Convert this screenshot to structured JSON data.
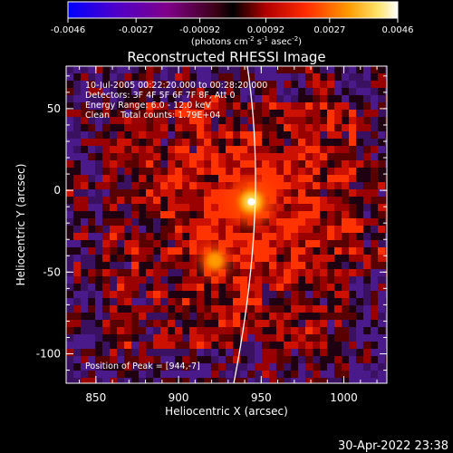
{
  "chart_data": {
    "type": "heatmap",
    "title": "Reconstructed RHESSI Image",
    "xlabel": "Heliocentric X (arcsec)",
    "ylabel": "Heliocentric Y (arcsec)",
    "xlim": [
      832,
      1026
    ],
    "ylim": [
      -118,
      76
    ],
    "xticks": [
      850,
      900,
      950,
      1000
    ],
    "yticks": [
      50,
      0,
      -50,
      -100
    ],
    "colorbar": {
      "ticks": [
        "-0.0046",
        "-0.0027",
        "-0.00092",
        "0.00092",
        "0.0027",
        "0.0046"
      ],
      "range": [
        -0.0046,
        0.0046
      ],
      "units_main": "(photons cm",
      "units_exp1": "-2",
      "units_s": " s",
      "units_exp2": "-1",
      "units_asec": " asec",
      "units_exp3": "-2",
      "units_close": ")",
      "colors": [
        "#0000ff",
        "#6a00b8",
        "#8b0060",
        "#000000",
        "#c00000",
        "#ff2a00",
        "#ff9000",
        "#ffe060",
        "#ffffff"
      ]
    },
    "sources": [
      {
        "x": 944,
        "y": -7,
        "peak": 0.0046
      },
      {
        "x": 922,
        "y": -43,
        "peak": 0.0032
      }
    ],
    "limb": "solar limb arc",
    "annotations": {
      "line1": "10-Jul-2005 00:22:20.000 to 00:28:20.000",
      "line2": "Detectors: 3F 4F 5F 6F 7F 8F, Att 0",
      "line3": "Energy Range: 6.0 - 12.0 keV",
      "line4": "Clean    Total counts: 1.79E+04",
      "peak": "Position of Peak = [944,-7]"
    }
  },
  "footer": {
    "timestamp": "30-Apr-2022 23:38"
  }
}
